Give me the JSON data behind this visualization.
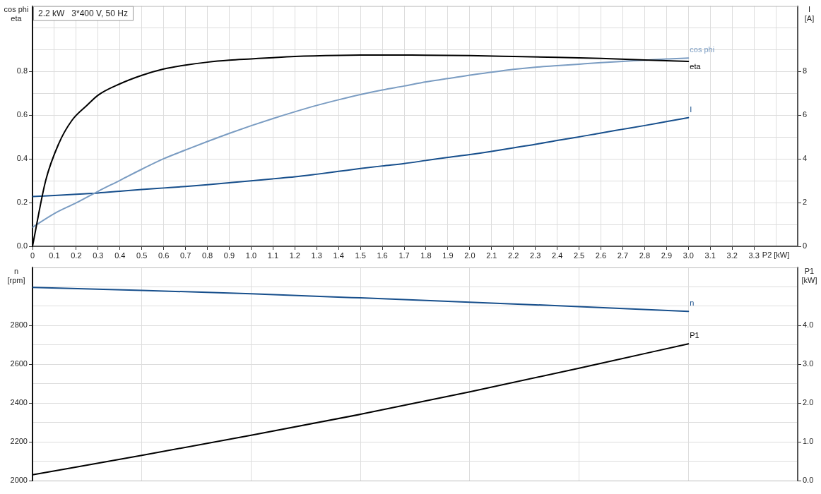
{
  "chart_data": [
    {
      "type": "line",
      "title": "2.2 kW   3*400 V, 50 Hz",
      "xlabel": "P2 [kW]",
      "ylabel": "cos phi\neta",
      "y2label": "I\n[A]",
      "x": [
        0,
        0.1,
        0.2,
        0.3,
        0.4,
        0.5,
        0.6,
        0.7,
        0.8,
        0.9,
        1,
        1.1,
        1.2,
        1.3,
        1.4,
        1.5,
        1.6,
        1.7,
        1.8,
        1.9,
        2,
        2.1,
        2.2,
        2.3,
        2.4,
        2.5,
        2.6,
        2.7,
        2.8,
        2.9,
        3
      ],
      "series": [
        {
          "name": "eta",
          "color": "#000000",
          "x": [
            0,
            0.06,
            0.12,
            0.18,
            0.25,
            0.3,
            0.4,
            0.5,
            0.6,
            0.7,
            0.8,
            0.9,
            1,
            1.1,
            1.2,
            1.4,
            1.6,
            1.8,
            2,
            2.2,
            2.4,
            2.6,
            2.8,
            3
          ],
          "values": [
            0,
            0.3,
            0.47,
            0.576,
            0.646,
            0.692,
            0.744,
            0.783,
            0.812,
            0.83,
            0.843,
            0.852,
            0.858,
            0.864,
            0.869,
            0.874,
            0.876,
            0.875,
            0.873,
            0.869,
            0.865,
            0.86,
            0.853,
            0.847
          ]
        },
        {
          "name": "cos phi",
          "color": "#7a9cc2",
          "values": [
            0.087,
            0.15,
            0.199,
            0.252,
            0.302,
            0.353,
            0.401,
            0.441,
            0.48,
            0.517,
            0.552,
            0.585,
            0.616,
            0.645,
            0.671,
            0.695,
            0.716,
            0.734,
            0.753,
            0.768,
            0.784,
            0.797,
            0.81,
            0.82,
            0.827,
            0.834,
            0.841,
            0.847,
            0.852,
            0.858,
            0.862
          ]
        },
        {
          "name": "I",
          "color": "#174f8c",
          "axis": "y2",
          "values": [
            2.28,
            2.33,
            2.38,
            2.44,
            2.52,
            2.6,
            2.67,
            2.74,
            2.82,
            2.91,
            3.0,
            3.09,
            3.18,
            3.3,
            3.43,
            3.56,
            3.68,
            3.79,
            3.93,
            4.07,
            4.2,
            4.35,
            4.51,
            4.67,
            4.85,
            5.01,
            5.19,
            5.36,
            5.53,
            5.71,
            5.89
          ]
        }
      ],
      "xlim": [
        0,
        3.5
      ],
      "xticks": [
        0,
        0.1,
        0.2,
        0.3,
        0.4,
        0.5,
        0.6,
        0.7,
        0.8,
        0.9,
        {
          "value": 1,
          "label": "1.0"
        },
        1.1,
        1.2,
        1.3,
        1.4,
        1.5,
        1.6,
        1.7,
        1.8,
        1.9,
        {
          "value": 2,
          "label": "2.0"
        },
        2.1,
        2.2,
        2.3,
        2.4,
        2.5,
        2.6,
        2.7,
        2.8,
        2.9,
        {
          "value": 3,
          "label": "3.0"
        },
        3.1,
        3.2,
        3.3,
        {
          "value": 3.4,
          "label": null
        }
      ],
      "ylim": [
        0,
        1.1
      ],
      "yticks": [
        {
          "value": 0,
          "label": "0.0"
        },
        {
          "value": 0.1,
          "label": null
        },
        0.2,
        {
          "value": 0.3,
          "label": null
        },
        0.4,
        {
          "value": 0.5,
          "label": null
        },
        0.6,
        {
          "value": 0.7,
          "label": null
        },
        0.8,
        {
          "value": 0.9,
          "label": null
        },
        {
          "value": 1,
          "label": null
        }
      ],
      "y2lim": [
        0,
        11
      ],
      "y2ticks": [
        0,
        2,
        4,
        6,
        8
      ],
      "grid": true
    },
    {
      "type": "line",
      "ylabel": "n\n[rpm]",
      "y2label": "P1\n[kW]",
      "x": [
        0,
        0.5,
        1,
        1.5,
        2,
        2.5,
        3
      ],
      "series": [
        {
          "name": "n",
          "color": "#174f8c",
          "values": [
            2997,
            2982,
            2964,
            2943,
            2921,
            2898,
            2873
          ]
        },
        {
          "name": "P1",
          "color": "#000000",
          "axis": "y2",
          "values": [
            0.15,
            0.65,
            1.17,
            1.71,
            2.29,
            2.9,
            3.53
          ]
        }
      ],
      "xlim": [
        0,
        3.5
      ],
      "xticks": [
        0,
        0.5,
        1,
        1.5,
        2,
        2.5,
        3
      ],
      "ylim": [
        2000,
        3100
      ],
      "yticks": [
        2000,
        {
          "value": 2100,
          "label": null
        },
        2200,
        {
          "value": 2300,
          "label": null
        },
        2400,
        {
          "value": 2500,
          "label": null
        },
        2600,
        {
          "value": 2700,
          "label": null
        },
        2800,
        {
          "value": 2900,
          "label": null
        },
        {
          "value": 3000,
          "label": null
        }
      ],
      "y2lim": [
        0,
        5.5
      ],
      "y2ticks": [
        {
          "value": 0,
          "label": "0.0"
        },
        {
          "value": 1,
          "label": "1.0"
        },
        {
          "value": 2,
          "label": "2.0"
        },
        {
          "value": 3,
          "label": "3.0"
        },
        {
          "value": 4,
          "label": "4.0"
        }
      ],
      "tick_labels": "y",
      "grid": true
    }
  ]
}
